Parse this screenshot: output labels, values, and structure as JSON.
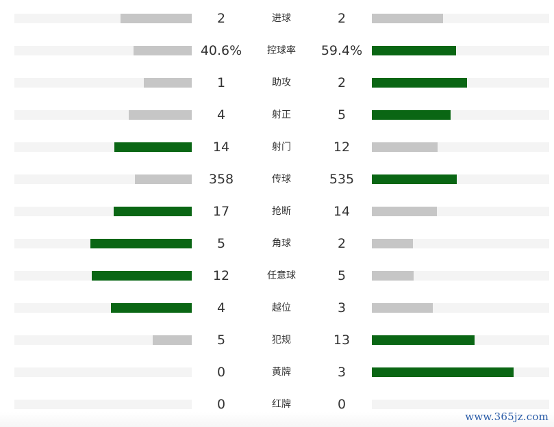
{
  "colors": {
    "highlight": "#0a6614",
    "neutral": "#c6c6c6",
    "track": "#f4f4f4"
  },
  "stats": [
    {
      "name": "进球",
      "left": "2",
      "right": "2",
      "left_fill": 0.4,
      "right_fill": 0.4,
      "left_lead": false,
      "right_lead": false
    },
    {
      "name": "控球率",
      "left": "40.6%",
      "right": "59.4%",
      "left_fill": 0.33,
      "right_fill": 0.476,
      "left_lead": false,
      "right_lead": true
    },
    {
      "name": "助攻",
      "left": "1",
      "right": "2",
      "left_fill": 0.27,
      "right_fill": 0.535,
      "left_lead": false,
      "right_lead": true
    },
    {
      "name": "射正",
      "left": "4",
      "right": "5",
      "left_fill": 0.355,
      "right_fill": 0.445,
      "left_lead": false,
      "right_lead": true
    },
    {
      "name": "射门",
      "left": "14",
      "right": "12",
      "left_fill": 0.435,
      "right_fill": 0.37,
      "left_lead": true,
      "right_lead": false
    },
    {
      "name": "传球",
      "left": "358",
      "right": "535",
      "left_fill": 0.32,
      "right_fill": 0.48,
      "left_lead": false,
      "right_lead": true
    },
    {
      "name": "抢断",
      "left": "17",
      "right": "14",
      "left_fill": 0.44,
      "right_fill": 0.365,
      "left_lead": true,
      "right_lead": false
    },
    {
      "name": "角球",
      "left": "5",
      "right": "2",
      "left_fill": 0.57,
      "right_fill": 0.23,
      "left_lead": true,
      "right_lead": false
    },
    {
      "name": "任意球",
      "left": "12",
      "right": "5",
      "left_fill": 0.565,
      "right_fill": 0.235,
      "left_lead": true,
      "right_lead": false
    },
    {
      "name": "越位",
      "left": "4",
      "right": "3",
      "left_fill": 0.455,
      "right_fill": 0.345,
      "left_lead": true,
      "right_lead": false
    },
    {
      "name": "犯规",
      "left": "5",
      "right": "13",
      "left_fill": 0.22,
      "right_fill": 0.58,
      "left_lead": false,
      "right_lead": true
    },
    {
      "name": "黄牌",
      "left": "0",
      "right": "3",
      "left_fill": 0.0,
      "right_fill": 0.8,
      "left_lead": false,
      "right_lead": true
    },
    {
      "name": "红牌",
      "left": "0",
      "right": "0",
      "left_fill": 0.0,
      "right_fill": 0.0,
      "left_lead": false,
      "right_lead": false
    }
  ],
  "watermark": "www.365jz.com"
}
